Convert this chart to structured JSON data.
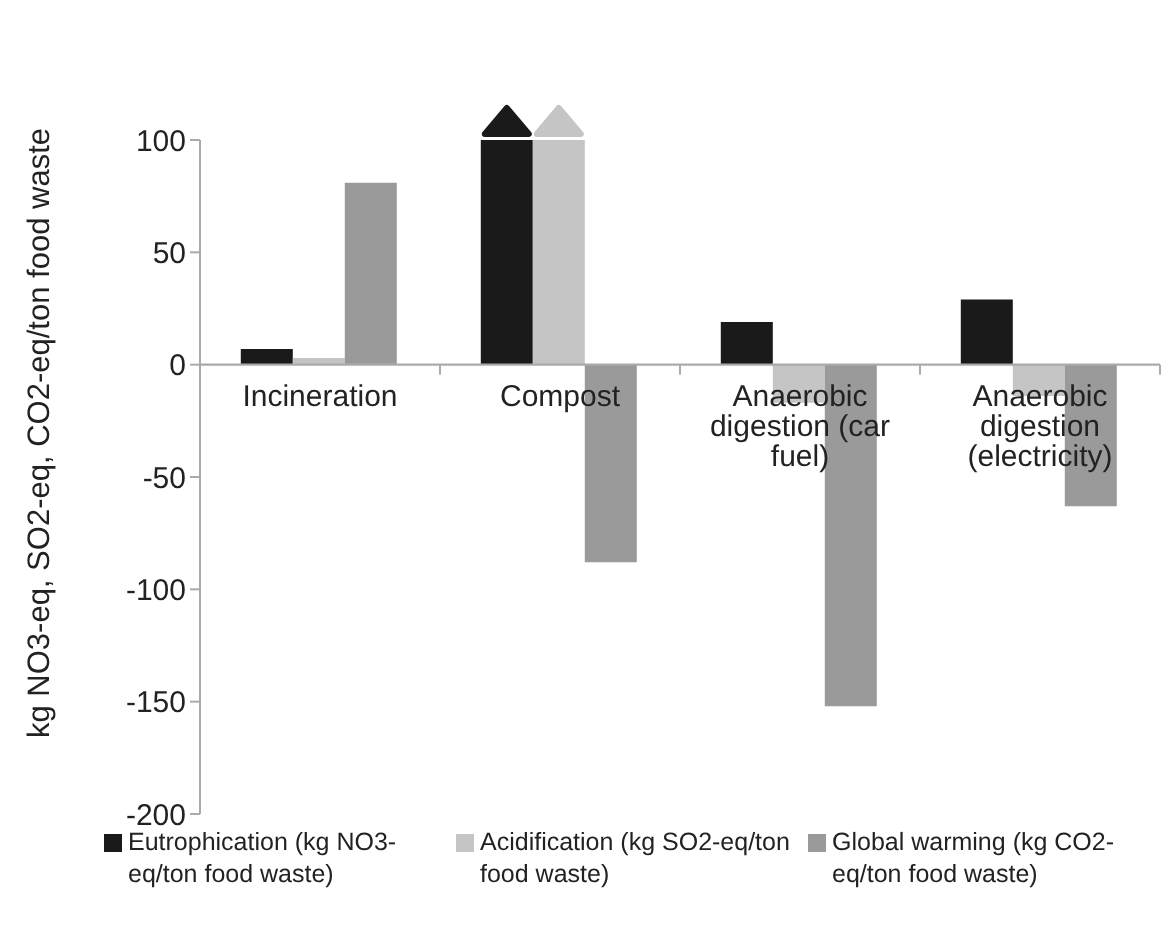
{
  "chart_data": {
    "type": "bar",
    "ylabel": "kg NO3-eq, SO2-eq, CO2-eq/ton food waste",
    "categories": [
      "Incineration",
      "Compost",
      "Anaerobic digestion (car fuel)",
      "Anaerobic digestion (electricity)"
    ],
    "series": [
      {
        "name": "Eutrophication (kg NO3-eq/ton food waste)",
        "color": "#1a1a1a",
        "values": [
          7,
          100,
          19,
          29
        ]
      },
      {
        "name": "Acidification (kg SO2-eq/ton food waste)",
        "color": "#c4c5c4",
        "values": [
          3,
          100,
          -17,
          -14
        ]
      },
      {
        "name": "Global warming (kg CO2-eq/ton food waste)",
        "color": "#999a99",
        "values": [
          81,
          -88,
          -152,
          -63
        ]
      }
    ],
    "ylim": [
      -200,
      100
    ],
    "yticks": [
      -200,
      -150,
      -100,
      -50,
      0,
      50,
      100
    ],
    "legend": "bottom"
  }
}
